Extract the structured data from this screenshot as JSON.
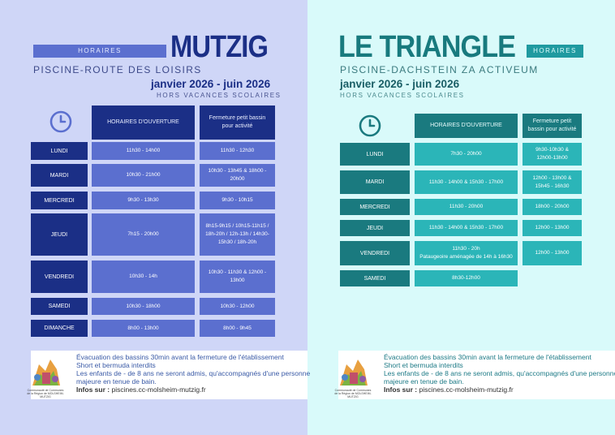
{
  "left": {
    "horaires_label": "HORAIRES",
    "title": "MUTZIG",
    "subtitle": "PISCINE-ROUTE DES LOISIRS",
    "period": "janvier 2026 - juin 2026",
    "note": "HORS VACANCES SCOLAIRES",
    "col_hours": "HORAIRES D'OUVERTURE",
    "col_closure": "Fermeture petit bassin pour activité",
    "rows": [
      {
        "day": "LUNDI",
        "hours": "11h30 - 14h00",
        "closure": "11h30 - 12h30"
      },
      {
        "day": "MARDI",
        "hours": "10h30 - 21h00",
        "closure": "10h30 - 13h45 & 18h00 - 20h00"
      },
      {
        "day": "MERCREDI",
        "hours": "9h30 - 13h30",
        "closure": "9h30 - 10h15"
      },
      {
        "day": "JEUDI",
        "hours": "7h15 - 20h00",
        "closure": "8h15-9h15 / 10h15-11h15 / 18h-20h / 12h-13h / 14h30-15h30 / 18h-20h"
      },
      {
        "day": "VENDREDI",
        "hours": "10h30 - 14h",
        "closure": "10h30 - 11h30 & 12h00 - 13h00"
      },
      {
        "day": "SAMEDI",
        "hours": "10h30 - 18h00",
        "closure": "10h30 - 12h00"
      },
      {
        "day": "DIMANCHE",
        "hours": "8h00 - 13h00",
        "closure": "8h00 - 9h45"
      }
    ],
    "colors": {
      "bg": "#cfd6f7",
      "dark": "#1b2f86",
      "cell": "#5b6fcf"
    }
  },
  "right": {
    "title": "LE TRIANGLE",
    "horaires_label": "HORAIRES",
    "subtitle": "PISCINE-DACHSTEIN ZA ACTIVEUM",
    "period": "janvier 2026 - juin 2026",
    "note": "HORS VACANCES SCOLAIRES",
    "col_hours": "HORAIRES D'OUVERTURE",
    "col_closure": "Fermeture petit bassin pour activité",
    "rows": [
      {
        "day": "LUNDI",
        "hours": "7h30 - 20h00",
        "closure": "9h30-10h30 & 12h00-13h00"
      },
      {
        "day": "MARDI",
        "hours": "11h30 - 14h00 & 15h30 - 17h00",
        "closure": "12h00 - 13h00 & 15h45 - 16h30"
      },
      {
        "day": "MERCREDI",
        "hours": "11h30 - 20h00",
        "closure": "18h00 - 20h00"
      },
      {
        "day": "JEUDI",
        "hours": "11h30 - 14h00 & 15h30 - 17h00",
        "closure": "12h00 - 13h00"
      },
      {
        "day": "VENDREDI",
        "hours": "11h30 - 20h",
        "hours_extra": "Pataugeoire aménagée de 14h à 16h30",
        "closure": "12h00 - 13h00"
      },
      {
        "day": "SAMEDI",
        "hours": "8h30-12h00",
        "closure": ""
      }
    ],
    "colors": {
      "bg": "#d9fafa",
      "dark": "#1a7a7f",
      "cell": "#2bb5b8"
    }
  },
  "footer": {
    "line1": "Évacuation des bassins 30min avant la fermeture de l'établissement",
    "line2": "Short et bermuda interdits",
    "line3": "Les enfants de - de 8 ans ne seront admis, qu'accompagnés d'une personne majeure en tenue de bain.",
    "info_label": "Infos sur :",
    "info_url": "piscines.cc-molsheim-mutzig.fr",
    "logo_caption": "Communauté de Communes de la Région de MOLSHEIM-MUTZIG",
    "logo_icon": "community-logo-icon"
  }
}
